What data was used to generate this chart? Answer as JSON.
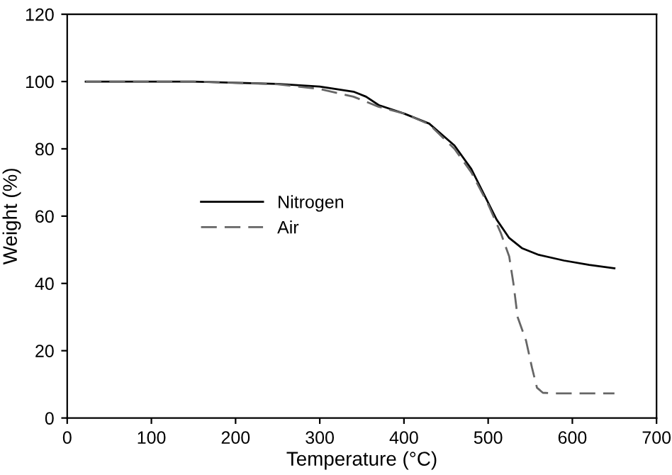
{
  "chart_data": {
    "type": "line",
    "xlabel": "Temperature (°C)",
    "ylabel": "Weight (%)",
    "xlim": [
      0,
      700
    ],
    "ylim": [
      0,
      120
    ],
    "xticks": [
      0,
      100,
      200,
      300,
      400,
      500,
      600,
      700
    ],
    "yticks": [
      0,
      20,
      40,
      60,
      80,
      100,
      120
    ],
    "grid": false,
    "legend": "center left",
    "series": [
      {
        "name": "Nitrogen",
        "color": "#000000",
        "line_style": "solid",
        "x": [
          22,
          150,
          250,
          300,
          340,
          355,
          370,
          400,
          430,
          460,
          480,
          500,
          510,
          525,
          540,
          560,
          590,
          620,
          650
        ],
        "values": [
          100,
          100,
          99.3,
          98.5,
          97,
          95.5,
          93,
          90.5,
          87.5,
          81,
          74,
          64,
          59,
          53.5,
          50.5,
          48.5,
          46.8,
          45.5,
          44.5
        ]
      },
      {
        "name": "Air",
        "color": "#666666",
        "line_style": "dashed",
        "x": [
          22,
          150,
          250,
          300,
          340,
          370,
          400,
          430,
          460,
          480,
          500,
          515,
          525,
          530,
          535,
          545,
          552,
          558,
          565,
          580,
          650
        ],
        "values": [
          100,
          100,
          99.2,
          97.8,
          95.5,
          92.5,
          90.5,
          87.3,
          80,
          73,
          63.5,
          55,
          48,
          40,
          30,
          23,
          15,
          9,
          7.5,
          7.3,
          7.3
        ]
      }
    ]
  }
}
